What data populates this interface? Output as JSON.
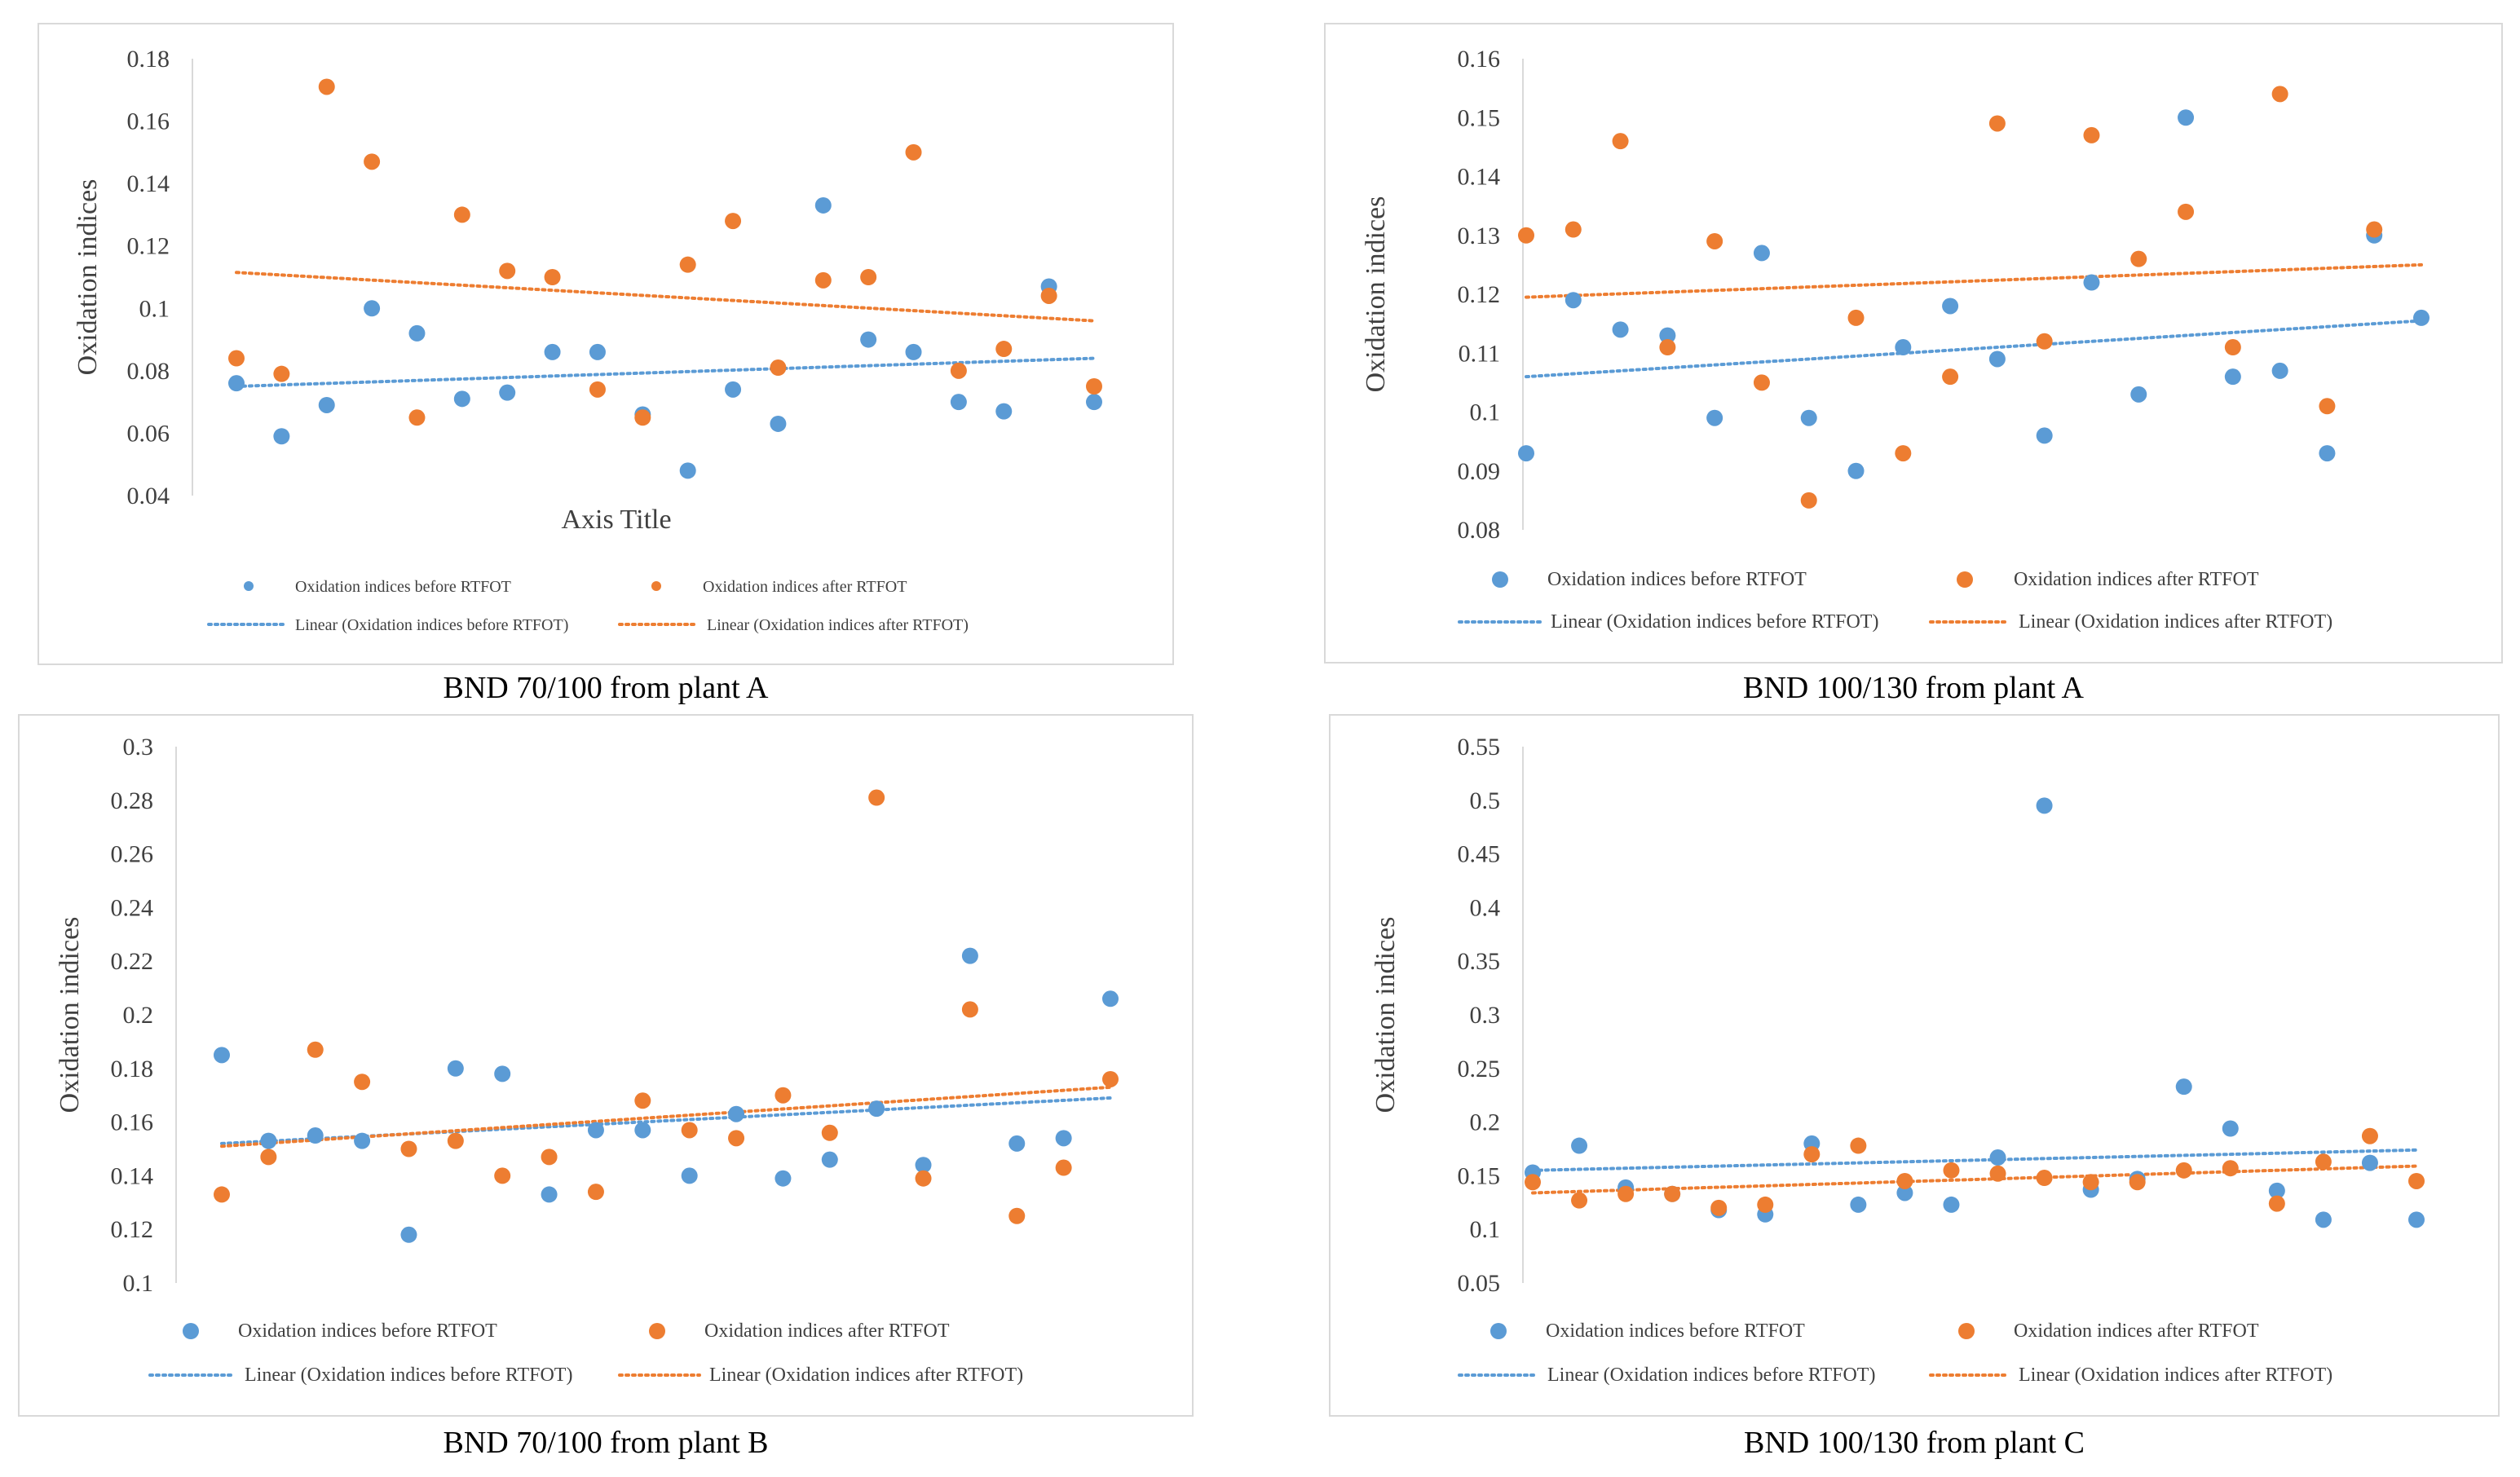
{
  "colors": {
    "before": "#5b9bd5",
    "after": "#ed7d31",
    "axis": "#d9d9d9",
    "text": "#404040"
  },
  "legend": {
    "before": "Oxidation indices before RTFOT",
    "after": "Oxidation indices after RTFOT",
    "linear_before": "Linear (Oxidation indices before RTFOT)",
    "linear_after": "Linear (Oxidation indices after RTFOT)"
  },
  "chart_data": [
    {
      "type": "scatter",
      "caption": "BND 70/100 from plant A",
      "ylabel": "Oxidation indices",
      "xlabel": "Axis Title",
      "ylim": [
        0.04,
        0.18
      ],
      "yticks": [
        "0.04",
        "0.06",
        "0.08",
        "0.1",
        "0.12",
        "0.14",
        "0.16",
        "0.18"
      ],
      "series": [
        {
          "name": "Oxidation indices before RTFOT",
          "values": [
            0.076,
            0.059,
            0.069,
            0.1,
            0.092,
            0.071,
            0.073,
            0.086,
            0.086,
            0.066,
            0.048,
            0.074,
            0.063,
            0.133,
            0.09,
            0.086,
            0.07,
            0.067,
            0.107,
            0.07
          ]
        },
        {
          "name": "Oxidation indices after RTFOT",
          "values": [
            0.084,
            0.079,
            0.171,
            0.147,
            0.065,
            0.13,
            0.112,
            0.11,
            0.074,
            0.065,
            0.114,
            0.128,
            0.081,
            0.109,
            0.11,
            0.15,
            0.08,
            0.087,
            0.104,
            0.075
          ]
        }
      ],
      "trendlines": [
        {
          "name": "Linear (Oxidation indices before RTFOT)",
          "start": 0.075,
          "end": 0.084
        },
        {
          "name": "Linear (Oxidation indices after RTFOT)",
          "start": 0.1115,
          "end": 0.096
        }
      ]
    },
    {
      "type": "scatter",
      "caption": "BND 100/130 from plant A",
      "ylabel": "Oxidation indices",
      "xlabel": "",
      "ylim": [
        0.08,
        0.16
      ],
      "yticks": [
        "0.08",
        "0.09",
        "0.1",
        "0.11",
        "0.12",
        "0.13",
        "0.14",
        "0.15",
        "0.16"
      ],
      "series": [
        {
          "name": "Oxidation indices before RTFOT",
          "values": [
            0.093,
            0.119,
            0.114,
            0.113,
            0.099,
            0.127,
            0.099,
            0.09,
            0.111,
            0.118,
            0.109,
            0.096,
            0.122,
            0.103,
            0.15,
            0.106,
            0.107,
            0.093,
            0.13,
            0.116
          ]
        },
        {
          "name": "Oxidation indices after RTFOT",
          "values": [
            0.13,
            0.131,
            0.146,
            0.111,
            0.129,
            0.105,
            0.085,
            0.116,
            0.093,
            0.106,
            0.149,
            0.112,
            0.147,
            0.126,
            0.134,
            0.111,
            0.154,
            0.101,
            0.131,
            null
          ]
        }
      ],
      "trendlines": [
        {
          "name": "Linear (Oxidation indices before RTFOT)",
          "start": 0.106,
          "end": 0.1155
        },
        {
          "name": "Linear (Oxidation indices after RTFOT)",
          "start": 0.1195,
          "end": 0.125
        }
      ]
    },
    {
      "type": "scatter",
      "caption": "BND 70/100 from plant B",
      "ylabel": "Oxidation indices",
      "xlabel": "",
      "ylim": [
        0.1,
        0.3
      ],
      "yticks": [
        "0.1",
        "0.12",
        "0.14",
        "0.16",
        "0.18",
        "0.2",
        "0.22",
        "0.24",
        "0.26",
        "0.28",
        "0.3"
      ],
      "series": [
        {
          "name": "Oxidation indices before RTFOT",
          "values": [
            0.185,
            0.153,
            0.155,
            0.153,
            0.118,
            0.18,
            0.178,
            0.133,
            0.157,
            0.157,
            0.14,
            0.163,
            0.139,
            0.146,
            0.165,
            0.144,
            0.222,
            0.152,
            0.154,
            0.206
          ]
        },
        {
          "name": "Oxidation indices after RTFOT",
          "values": [
            0.133,
            0.147,
            0.187,
            0.175,
            0.15,
            0.153,
            0.14,
            0.147,
            0.134,
            0.168,
            0.157,
            0.154,
            0.17,
            0.156,
            0.281,
            0.139,
            0.202,
            0.125,
            0.143,
            0.176
          ]
        }
      ],
      "trendlines": [
        {
          "name": "Linear (Oxidation indices before RTFOT)",
          "start": 0.152,
          "end": 0.169
        },
        {
          "name": "Linear (Oxidation indices after RTFOT)",
          "start": 0.151,
          "end": 0.173
        }
      ]
    },
    {
      "type": "scatter",
      "caption": "BND 100/130 from plant C",
      "ylabel": "Oxidation indices",
      "xlabel": "",
      "ylim": [
        0.05,
        0.55
      ],
      "yticks": [
        "0.05",
        "0.1",
        "0.15",
        "0.2",
        "0.25",
        "0.3",
        "0.35",
        "0.4",
        "0.45",
        "0.5",
        "0.55"
      ],
      "series": [
        {
          "name": "Oxidation indices before RTFOT",
          "values": [
            0.153,
            0.178,
            0.139,
            0.133,
            0.118,
            0.114,
            0.18,
            0.123,
            0.134,
            0.123,
            0.167,
            0.495,
            0.137,
            0.147,
            0.233,
            0.194,
            0.136,
            0.109,
            0.162,
            0.109
          ]
        },
        {
          "name": "Oxidation indices after RTFOT",
          "values": [
            0.144,
            0.127,
            0.133,
            0.133,
            0.12,
            0.123,
            0.17,
            0.178,
            0.145,
            0.155,
            0.152,
            0.148,
            0.144,
            0.144,
            0.155,
            0.157,
            0.124,
            0.163,
            0.187,
            0.145
          ]
        }
      ],
      "trendlines": [
        {
          "name": "Linear (Oxidation indices before RTFOT)",
          "start": 0.155,
          "end": 0.174
        },
        {
          "name": "Linear (Oxidation indices after RTFOT)",
          "start": 0.134,
          "end": 0.159
        }
      ]
    }
  ]
}
